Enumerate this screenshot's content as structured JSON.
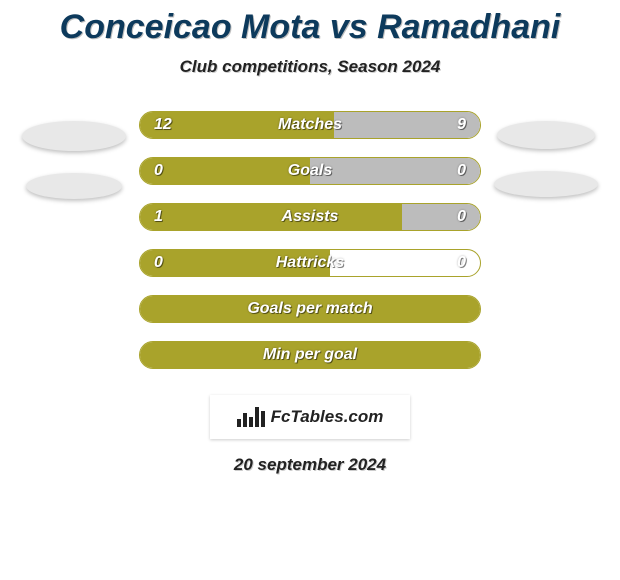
{
  "title": "Conceicao Mota vs Ramadhani",
  "subtitle": "Club competitions, Season 2024",
  "date": "20 september 2024",
  "logo_text": "FcTables.com",
  "colors": {
    "background": "#ffffff",
    "title_text": "#0d3a5c",
    "subtitle_text": "#222222",
    "fill_a": "#a9a32b",
    "fill_b": "#bcbcbc",
    "ellipse_left": "#e8e8e8",
    "ellipse_right": "#e8e8e8",
    "bar_value_text": "#ffffff",
    "date_text": "#222222"
  },
  "rows": [
    {
      "category": "Matches",
      "left_val": "12",
      "right_val": "9",
      "left_pct": 57,
      "right_pct": 43,
      "show_right_fill": true,
      "show_left_ellipse": true,
      "show_right_ellipse": true
    },
    {
      "category": "Goals",
      "left_val": "0",
      "right_val": "0",
      "left_pct": 50,
      "right_pct": 50,
      "show_right_fill": true,
      "show_left_ellipse": true,
      "show_right_ellipse": true
    },
    {
      "category": "Assists",
      "left_val": "1",
      "right_val": "0",
      "left_pct": 77,
      "right_pct": 23,
      "show_right_fill": true,
      "show_left_ellipse": false,
      "show_right_ellipse": false
    },
    {
      "category": "Hattricks",
      "left_val": "0",
      "right_val": "0",
      "left_pct": 56,
      "right_pct": 0,
      "show_right_fill": false,
      "show_left_ellipse": false,
      "show_right_ellipse": false
    },
    {
      "category": "Goals per match",
      "left_val": "",
      "right_val": "",
      "left_pct": 100,
      "right_pct": 0,
      "show_right_fill": false,
      "show_left_ellipse": false,
      "show_right_ellipse": false
    },
    {
      "category": "Min per goal",
      "left_val": "",
      "right_val": "",
      "left_pct": 100,
      "right_pct": 0,
      "show_right_fill": false,
      "show_left_ellipse": false,
      "show_right_ellipse": false
    }
  ]
}
